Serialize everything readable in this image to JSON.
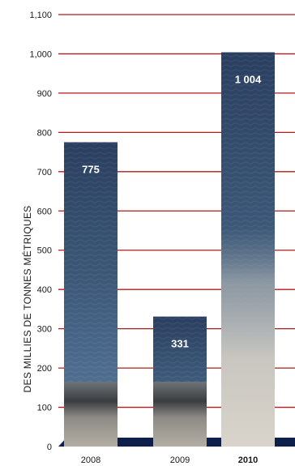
{
  "chart_data": {
    "type": "bar",
    "title": "",
    "xlabel": "",
    "ylabel": "DES MILLIES DE TONNES MÉTRIQUES",
    "categories": [
      "2008",
      "2009",
      "2010"
    ],
    "highlight_category": "2010",
    "values": [
      775,
      331,
      1004
    ],
    "data_labels": [
      "775",
      "331",
      "1 004"
    ],
    "ylim": [
      0,
      1100
    ],
    "yticks": [
      {
        "value": 0,
        "label": "0"
      },
      {
        "value": 100,
        "label": "100"
      },
      {
        "value": 200,
        "label": "200"
      },
      {
        "value": 300,
        "label": "300"
      },
      {
        "value": 400,
        "label": "400"
      },
      {
        "value": 500,
        "label": "500"
      },
      {
        "value": 600,
        "label": "600"
      },
      {
        "value": 700,
        "label": "700"
      },
      {
        "value": 800,
        "label": "800"
      },
      {
        "value": 900,
        "label": "900"
      },
      {
        "value": 1000,
        "label": "1,000"
      },
      {
        "value": 1100,
        "label": "1,100"
      }
    ],
    "grid": true,
    "legend": "none",
    "colors": {
      "grid": "#b01c1c",
      "baseline": "#0d1f4a",
      "water_top": "#2a3f60",
      "water_mid": "#4a6a90",
      "foam": "#c8c6bf"
    }
  }
}
